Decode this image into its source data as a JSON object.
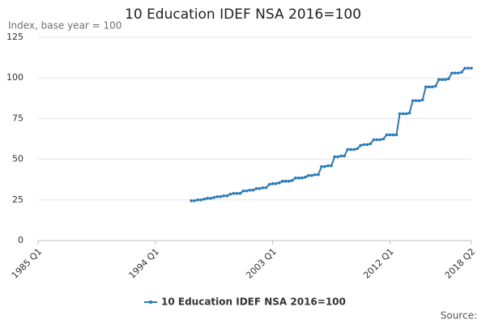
{
  "chart_data": {
    "type": "line",
    "title": "10 Education IDEF NSA 2016=100",
    "subtitle": "Index, base year = 100",
    "source": "Source:",
    "categories": [
      "1985 Q1",
      null,
      null,
      null,
      null,
      null,
      null,
      null,
      null,
      null,
      null,
      null,
      null,
      null,
      null,
      null,
      null,
      null,
      null,
      null,
      null,
      null,
      null,
      null,
      null,
      null,
      null,
      null,
      null,
      null,
      null,
      null,
      null,
      null,
      null,
      null,
      "1994 Q1",
      null,
      null,
      null,
      null,
      null,
      null,
      null,
      null,
      null,
      null,
      null,
      null,
      null,
      null,
      null,
      null,
      null,
      null,
      null,
      null,
      null,
      null,
      null,
      null,
      null,
      null,
      null,
      null,
      null,
      null,
      null,
      null,
      null,
      null,
      null,
      "2003 Q1",
      null,
      null,
      null,
      null,
      null,
      null,
      null,
      null,
      null,
      null,
      null,
      null,
      null,
      null,
      null,
      null,
      null,
      null,
      null,
      null,
      null,
      null,
      null,
      null,
      null,
      null,
      null,
      null,
      null,
      null,
      null,
      null,
      null,
      null,
      null,
      "2012 Q1",
      null,
      null,
      null,
      null,
      null,
      null,
      null,
      null,
      null,
      null,
      null,
      null,
      null,
      null,
      null,
      null,
      null,
      null,
      null,
      null,
      null,
      null,
      null,
      null,
      "2018 Q2"
    ],
    "series": [
      {
        "name": "10 Education IDEF NSA 2016=100",
        "color": "#2a7ab8",
        "values": [
          null,
          null,
          null,
          null,
          null,
          null,
          null,
          null,
          null,
          null,
          null,
          null,
          null,
          null,
          null,
          null,
          null,
          null,
          null,
          null,
          null,
          null,
          null,
          null,
          null,
          null,
          null,
          null,
          null,
          null,
          null,
          null,
          null,
          null,
          null,
          null,
          null,
          null,
          null,
          null,
          null,
          null,
          null,
          null,
          null,
          null,
          null,
          24.5,
          24.5,
          25,
          25,
          25.5,
          26,
          26,
          26.5,
          27,
          27,
          27.5,
          27.5,
          28.5,
          29,
          29,
          29,
          30.5,
          30.5,
          31,
          31,
          32,
          32,
          32.5,
          32.5,
          34.5,
          35,
          35,
          35.5,
          36.5,
          36.5,
          36.5,
          37,
          38.5,
          38.5,
          38.5,
          39,
          40,
          40,
          40.5,
          40.5,
          45.5,
          45.5,
          46,
          46,
          51.5,
          51.5,
          52,
          52,
          56,
          56,
          56,
          56.5,
          58.5,
          59,
          59,
          59.5,
          62,
          62,
          62,
          62.5,
          65,
          65,
          65,
          65,
          78,
          78,
          78,
          78.5,
          86,
          86,
          86,
          86.5,
          94.5,
          94.5,
          94.5,
          95,
          99,
          99,
          99,
          99.5,
          103,
          103,
          103,
          103.5,
          106,
          106,
          106
        ]
      }
    ],
    "ylim": [
      0,
      125
    ],
    "yticks": [
      0,
      25,
      50,
      75,
      100,
      125
    ],
    "grid": true
  }
}
